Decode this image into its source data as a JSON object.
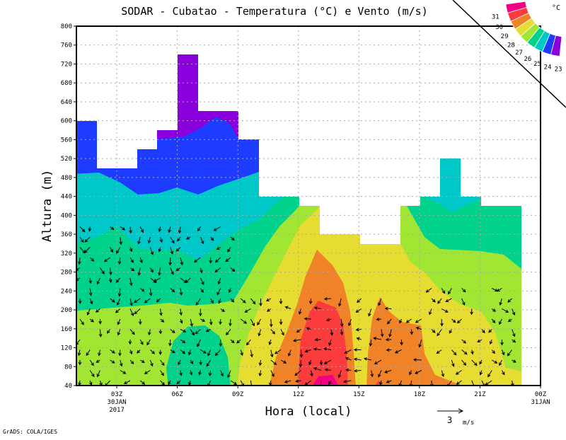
{
  "chart_data": {
    "type": "heatmap",
    "title": "SODAR - Cubatao - Temperatura (°C) e Vento (m/s)",
    "xlabel": "Hora (local)",
    "ylabel": "Altura (m)",
    "ylim": [
      40,
      800
    ],
    "yticks": [
      "40",
      "80",
      "120",
      "160",
      "200",
      "240",
      "280",
      "320",
      "360",
      "400",
      "440",
      "480",
      "520",
      "560",
      "600",
      "640",
      "680",
      "720",
      "760",
      "800"
    ],
    "xticks": [
      {
        "label": "03Z",
        "sub": [
          "30JAN",
          "2017"
        ]
      },
      {
        "label": "06Z",
        "sub": []
      },
      {
        "label": "09Z",
        "sub": []
      },
      {
        "label": "12Z",
        "sub": []
      },
      {
        "label": "15Z",
        "sub": []
      },
      {
        "label": "18Z",
        "sub": []
      },
      {
        "label": "21Z",
        "sub": []
      },
      {
        "label": "00Z",
        "sub": [
          "31JAN"
        ]
      }
    ],
    "xlim_hours": [
      1,
      24
    ],
    "grid": true,
    "colorbar": {
      "unit": "°C",
      "levels": [
        "23",
        "24",
        "25",
        "26",
        "27",
        "28",
        "29",
        "30",
        "31"
      ],
      "colors": [
        "#8c00d8",
        "#8a00dc",
        "#1e3cff",
        "#00c8c8",
        "#00d28c",
        "#a0e632",
        "#e6dc32",
        "#f08228",
        "#fa3c3c",
        "#f00082"
      ]
    },
    "data_top_m_by_hour": [
      [
        1,
        600
      ],
      [
        2,
        500
      ],
      [
        4,
        540
      ],
      [
        5,
        580
      ],
      [
        6,
        740
      ],
      [
        7,
        620
      ],
      [
        9,
        560
      ],
      [
        10,
        440
      ],
      [
        12,
        420
      ],
      [
        13,
        360
      ],
      [
        15,
        340
      ],
      [
        17,
        420
      ],
      [
        18,
        440
      ],
      [
        19,
        520
      ],
      [
        20,
        440
      ],
      [
        21,
        420
      ],
      [
        23,
        null
      ]
    ],
    "vector_reference": {
      "value": "3",
      "unit": "m/s"
    }
  },
  "footer": "GrADS: COLA/IGES"
}
